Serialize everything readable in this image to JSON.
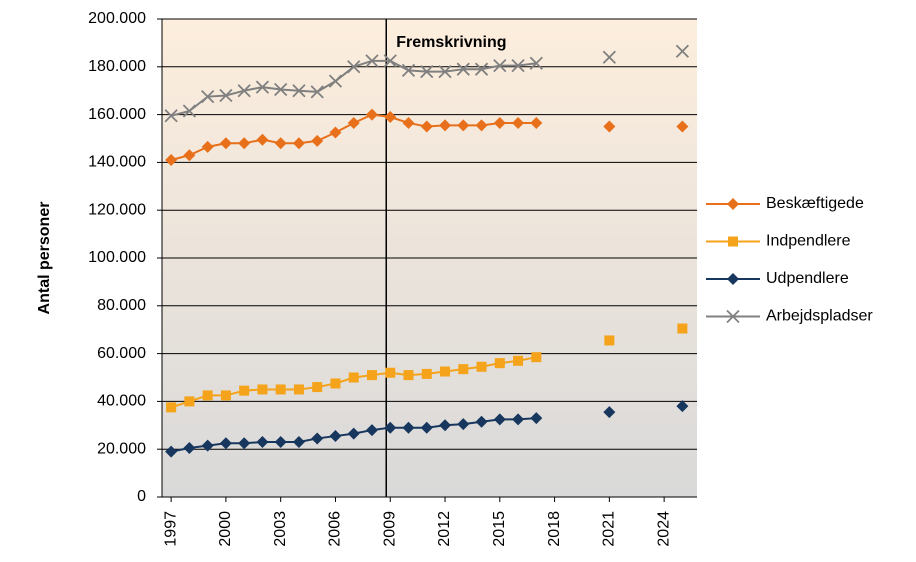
{
  "chart_data": {
    "type": "line",
    "y_label": "Antal personer",
    "annotation": "Fremskrivning",
    "forecast_start": 2009,
    "x": [
      1997,
      1998,
      1999,
      2000,
      2001,
      2002,
      2003,
      2004,
      2005,
      2006,
      2007,
      2008,
      2009,
      2010,
      2011,
      2012,
      2013,
      2014,
      2015,
      2016,
      2017,
      2021,
      2025
    ],
    "xlim": [
      1996.5,
      2025.8
    ],
    "xticks": [
      1997,
      2000,
      2003,
      2006,
      2009,
      2012,
      2015,
      2018,
      2021,
      2024
    ],
    "ylim": [
      0,
      200000
    ],
    "yticks": [
      0,
      {
        "value": 20000,
        "label": "20.000"
      },
      {
        "value": 40000,
        "label": "40.000"
      },
      {
        "value": 60000,
        "label": "60.000"
      },
      {
        "value": 80000,
        "label": "80.000"
      },
      {
        "value": 100000,
        "label": "100.000"
      },
      {
        "value": 120000,
        "label": "120.000"
      },
      {
        "value": 140000,
        "label": "140.000"
      },
      {
        "value": 160000,
        "label": "160.000"
      },
      {
        "value": 180000,
        "label": "180.000"
      },
      {
        "value": 200000,
        "label": "200.000"
      }
    ],
    "grid": true,
    "legend": "right",
    "series": [
      {
        "name": "Beskæftigede",
        "color": "#e8701a",
        "marker": "diamond",
        "values": [
          141000,
          143000,
          146500,
          148000,
          148000,
          149500,
          148000,
          148000,
          149000,
          152500,
          156500,
          160000,
          159000,
          156500,
          155000,
          155500,
          155500,
          155500,
          156500,
          156500,
          156500,
          155000,
          155000
        ]
      },
      {
        "name": "Indpendlere",
        "color": "#f5a31a",
        "marker": "square",
        "values": [
          37500,
          40000,
          42500,
          42500,
          44500,
          45000,
          45000,
          45000,
          46000,
          47500,
          50000,
          51000,
          52000,
          51000,
          51500,
          52500,
          53500,
          54500,
          56000,
          57000,
          58500,
          65500,
          70500
        ]
      },
      {
        "name": "Udpendlere",
        "color": "#17375e",
        "marker": "diamond",
        "values": [
          19000,
          20500,
          21500,
          22500,
          22500,
          23000,
          23000,
          23000,
          24500,
          25500,
          26500,
          28000,
          29000,
          29000,
          29000,
          30000,
          30500,
          31500,
          32500,
          32500,
          33000,
          35500,
          38000
        ]
      },
      {
        "name": "Arbejdspladser",
        "color": "#808080",
        "marker": "x",
        "values": [
          159500,
          161500,
          167500,
          168000,
          170000,
          171500,
          170500,
          170000,
          169500,
          174000,
          180000,
          182500,
          182500,
          178500,
          178000,
          178000,
          179000,
          179000,
          180500,
          180500,
          181500,
          184000,
          186500
        ]
      }
    ]
  }
}
